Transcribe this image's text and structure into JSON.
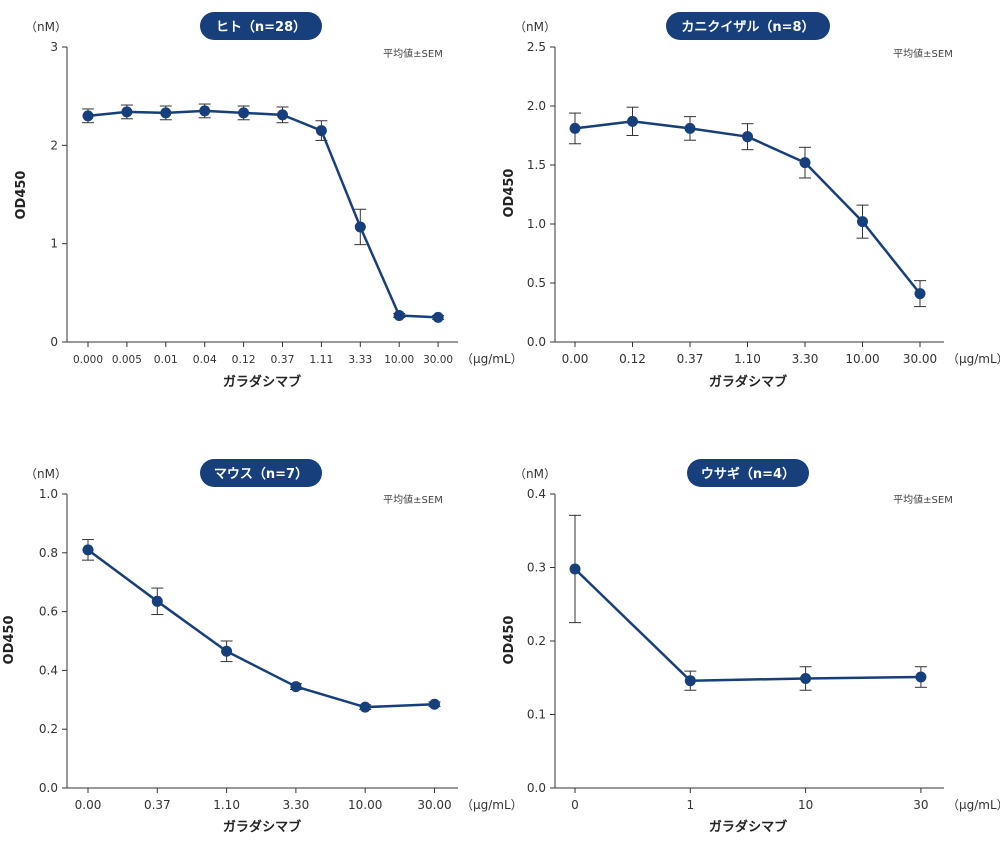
{
  "chart_data": [
    {
      "type": "line",
      "title": "ヒト（n=28）",
      "y_unit": "（nM）",
      "ylabel": "OD450",
      "xlabel": "ガラダシマブ",
      "x_unit": "（μg/mL）",
      "note": "平均値±SEM",
      "ylim": [
        0,
        3
      ],
      "yticks": [
        "0",
        "1",
        "2",
        "3"
      ],
      "categories": [
        "0.000",
        "0.005",
        "0.01",
        "0.04",
        "0.12",
        "0.37",
        "1.11",
        "3.33",
        "10.00",
        "30.00"
      ],
      "values": [
        2.3,
        2.34,
        2.33,
        2.35,
        2.33,
        2.31,
        2.15,
        1.17,
        0.27,
        0.25
      ],
      "errors": [
        0.07,
        0.07,
        0.07,
        0.07,
        0.07,
        0.08,
        0.1,
        0.18,
        0.02,
        0.02
      ]
    },
    {
      "type": "line",
      "title": "カニクイザル（n=8）",
      "y_unit": "（nM）",
      "ylabel": "OD450",
      "xlabel": "ガラダシマブ",
      "x_unit": "（μg/mL）",
      "note": "平均値±SEM",
      "ylim": [
        0,
        2.5
      ],
      "yticks": [
        "0.0",
        "0.5",
        "1.0",
        "1.5",
        "2.0",
        "2.5"
      ],
      "categories": [
        "0.00",
        "0.12",
        "0.37",
        "1.10",
        "3.30",
        "10.00",
        "30.00"
      ],
      "values": [
        1.81,
        1.87,
        1.81,
        1.74,
        1.52,
        1.02,
        0.41
      ],
      "errors": [
        0.13,
        0.12,
        0.1,
        0.11,
        0.13,
        0.14,
        0.11
      ]
    },
    {
      "type": "line",
      "title": "マウス（n=7）",
      "y_unit": "（nM）",
      "ylabel": "OD450",
      "xlabel": "ガラダシマブ",
      "x_unit": "（μg/mL）",
      "note": "平均値±SEM",
      "ylim": [
        0,
        1.0
      ],
      "yticks": [
        "0.0",
        "0.2",
        "0.4",
        "0.6",
        "0.8",
        "1.0"
      ],
      "categories": [
        "0.00",
        "0.37",
        "1.10",
        "3.30",
        "10.00",
        "30.00"
      ],
      "values": [
        0.81,
        0.635,
        0.465,
        0.345,
        0.275,
        0.285
      ],
      "errors": [
        0.035,
        0.045,
        0.035,
        0.01,
        0.008,
        0.008
      ]
    },
    {
      "type": "line",
      "title": "ウサギ（n=4）",
      "y_unit": "（nM）",
      "ylabel": "OD450",
      "xlabel": "ガラダシマブ",
      "x_unit": "（μg/mL）",
      "note": "平均値±SEM",
      "ylim": [
        0,
        0.4
      ],
      "yticks": [
        "0.0",
        "0.1",
        "0.2",
        "0.3",
        "0.4"
      ],
      "categories": [
        "0",
        "1",
        "10",
        "30"
      ],
      "values": [
        0.298,
        0.146,
        0.149,
        0.151
      ],
      "errors": [
        0.073,
        0.013,
        0.016,
        0.014
      ]
    }
  ],
  "colors": {
    "series": "#173f7b",
    "title_bg": "#173f7b",
    "axis": "#333333",
    "text": "#333333"
  }
}
